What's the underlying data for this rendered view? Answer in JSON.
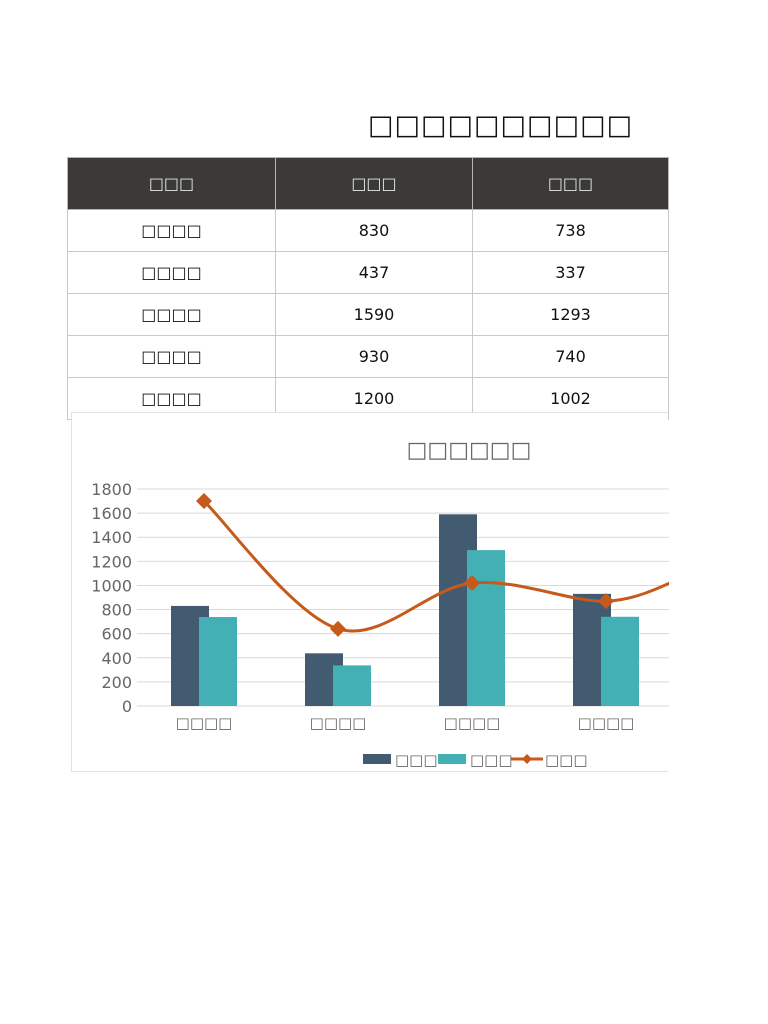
{
  "page": {
    "title": "□□□□□□□□□□"
  },
  "table": {
    "headers": [
      "□□□",
      "□□□",
      "□□□"
    ],
    "rows": [
      [
        "□□□□",
        "830",
        "738"
      ],
      [
        "□□□□",
        "437",
        "337"
      ],
      [
        "□□□□",
        "1590",
        "1293"
      ],
      [
        "□□□□",
        "930",
        "740"
      ],
      [
        "□□□□",
        "1200",
        "1002"
      ]
    ]
  },
  "colors": {
    "header_bg": "#3b3a38",
    "series1": "#435b71",
    "series2": "#43b0b5",
    "series3": "#c55a1a",
    "grid": "#d9d9d9",
    "axis_text": "#666666"
  },
  "chart_data": {
    "type": "bar",
    "title": "□□□□□□",
    "categories": [
      "□□□□",
      "□□□□",
      "□□□□",
      "□□□□"
    ],
    "series": [
      {
        "name": "□□□",
        "type": "bar",
        "color": "#435b71",
        "values": [
          830,
          437,
          1590,
          930
        ]
      },
      {
        "name": "□□□",
        "type": "bar",
        "color": "#43b0b5",
        "values": [
          738,
          337,
          1293,
          740
        ]
      },
      {
        "name": "□□□",
        "type": "line",
        "smooth": true,
        "marker": "diamond",
        "color": "#c55a1a",
        "values": [
          1700,
          640,
          1020,
          870
        ]
      }
    ],
    "xlabel": "",
    "ylabel": "",
    "ylim": [
      0,
      1800
    ],
    "yticks": [
      0,
      200,
      400,
      600,
      800,
      1000,
      1200,
      1400,
      1600,
      1800
    ],
    "grid": true,
    "legend_position": "bottom",
    "note": "Bars are overlapped (series 1 behind series 2); chart is clipped at the right edge."
  }
}
